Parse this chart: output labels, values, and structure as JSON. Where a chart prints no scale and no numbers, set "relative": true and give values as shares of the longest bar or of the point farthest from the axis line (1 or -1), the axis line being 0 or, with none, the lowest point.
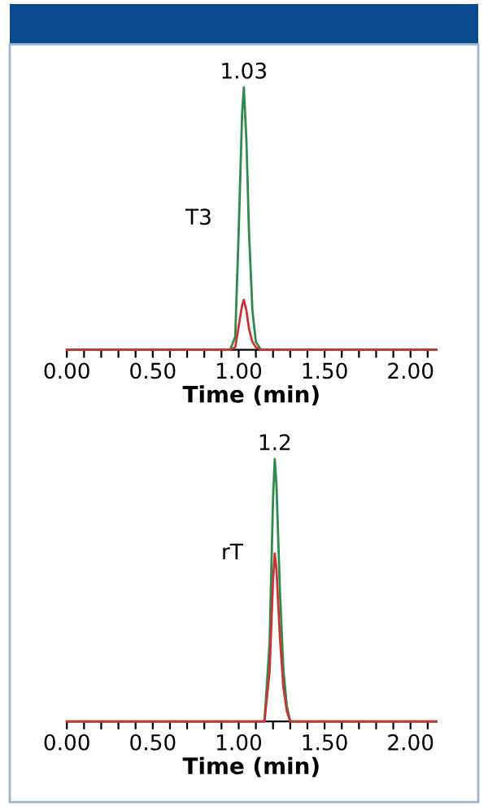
{
  "chart_data": [
    {
      "type": "line",
      "relative": true,
      "xlabel": "Time (min)",
      "xlim": [
        0,
        2.15
      ],
      "xticks": [
        {
          "value": 0,
          "label": "0.00"
        },
        {
          "value": 0.1,
          "label": null
        },
        {
          "value": 0.2,
          "label": null
        },
        {
          "value": 0.3,
          "label": null
        },
        {
          "value": 0.4,
          "label": null
        },
        {
          "value": 0.5,
          "label": "0.50"
        },
        {
          "value": 0.6,
          "label": null
        },
        {
          "value": 0.7,
          "label": null
        },
        {
          "value": 0.8,
          "label": null
        },
        {
          "value": 0.9,
          "label": null
        },
        {
          "value": 1,
          "label": "1.00"
        },
        {
          "value": 1.1,
          "label": null
        },
        {
          "value": 1.2,
          "label": null
        },
        {
          "value": 1.3,
          "label": null
        },
        {
          "value": 1.4,
          "label": null
        },
        {
          "value": 1.5,
          "label": "1.50"
        },
        {
          "value": 1.6,
          "label": null
        },
        {
          "value": 1.7,
          "label": null
        },
        {
          "value": 1.8,
          "label": null
        },
        {
          "value": 1.9,
          "label": null
        },
        {
          "value": 2,
          "label": "2.00"
        },
        {
          "value": 2.1,
          "label": null
        }
      ],
      "x": [
        0,
        0.95,
        0.98,
        1.0,
        1.02,
        1.03,
        1.045,
        1.06,
        1.08,
        1.1,
        1.13,
        2.15
      ],
      "series": [
        {
          "color": "#2e8b4e",
          "values": [
            0,
            0,
            0.05,
            0.45,
            0.9,
            1,
            0.8,
            0.45,
            0.15,
            0.03,
            0,
            0
          ]
        },
        {
          "color": "#cc3333",
          "values": [
            0,
            0,
            0.01,
            0.09,
            0.17,
            0.19,
            0.15,
            0.08,
            0.03,
            0.01,
            0,
            0
          ]
        }
      ],
      "annotations": [
        "1.03",
        "T3"
      ],
      "grid": false,
      "legend": false,
      "line_style": "solid",
      "marker": "none"
    },
    {
      "type": "line",
      "relative": true,
      "xlabel": "Time (min)",
      "xlim": [
        0,
        2.15
      ],
      "xticks": [
        {
          "value": 0,
          "label": "0.00"
        },
        {
          "value": 0.1,
          "label": null
        },
        {
          "value": 0.2,
          "label": null
        },
        {
          "value": 0.3,
          "label": null
        },
        {
          "value": 0.4,
          "label": null
        },
        {
          "value": 0.5,
          "label": "0.50"
        },
        {
          "value": 0.6,
          "label": null
        },
        {
          "value": 0.7,
          "label": null
        },
        {
          "value": 0.8,
          "label": null
        },
        {
          "value": 0.9,
          "label": null
        },
        {
          "value": 1,
          "label": "1.00"
        },
        {
          "value": 1.1,
          "label": null
        },
        {
          "value": 1.2,
          "label": null
        },
        {
          "value": 1.3,
          "label": null
        },
        {
          "value": 1.4,
          "label": null
        },
        {
          "value": 1.5,
          "label": "1.50"
        },
        {
          "value": 1.6,
          "label": null
        },
        {
          "value": 1.7,
          "label": null
        },
        {
          "value": 1.8,
          "label": null
        },
        {
          "value": 1.9,
          "label": null
        },
        {
          "value": 2,
          "label": "2.00"
        },
        {
          "value": 2.1,
          "label": null
        }
      ],
      "x": [
        0,
        1.15,
        1.18,
        1.2,
        1.21,
        1.22,
        1.24,
        1.26,
        1.28,
        1.3,
        2.15
      ],
      "series": [
        {
          "color": "#2e8b4e",
          "values": [
            0,
            0,
            0.3,
            0.85,
            1,
            0.9,
            0.5,
            0.2,
            0.06,
            0,
            0
          ]
        },
        {
          "color": "#cc3333",
          "values": [
            0,
            0,
            0.19,
            0.54,
            0.64,
            0.58,
            0.32,
            0.13,
            0.04,
            0,
            0
          ]
        }
      ],
      "annotations": [
        "1.2",
        "rT"
      ],
      "grid": false,
      "legend": false,
      "line_style": "solid",
      "marker": "none"
    }
  ]
}
